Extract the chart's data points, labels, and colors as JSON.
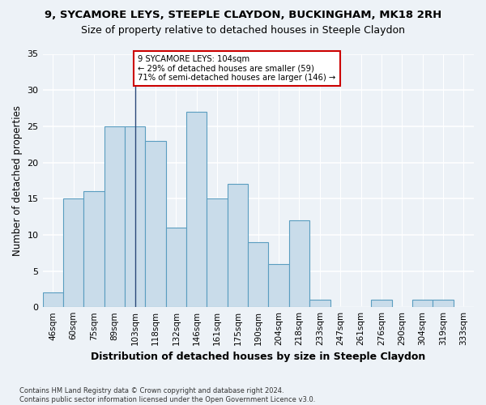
{
  "title1": "9, SYCAMORE LEYS, STEEPLE CLAYDON, BUCKINGHAM, MK18 2RH",
  "title2": "Size of property relative to detached houses in Steeple Claydon",
  "xlabel": "Distribution of detached houses by size in Steeple Claydon",
  "ylabel": "Number of detached properties",
  "footnote": "Contains HM Land Registry data © Crown copyright and database right 2024.\nContains public sector information licensed under the Open Government Licence v3.0.",
  "bar_labels": [
    "46sqm",
    "60sqm",
    "75sqm",
    "89sqm",
    "103sqm",
    "118sqm",
    "132sqm",
    "146sqm",
    "161sqm",
    "175sqm",
    "190sqm",
    "204sqm",
    "218sqm",
    "233sqm",
    "247sqm",
    "261sqm",
    "276sqm",
    "290sqm",
    "304sqm",
    "319sqm",
    "333sqm"
  ],
  "bar_values": [
    2,
    15,
    16,
    25,
    25,
    23,
    11,
    27,
    15,
    17,
    9,
    6,
    12,
    1,
    0,
    0,
    1,
    0,
    1,
    1,
    0
  ],
  "bar_color": "#c9dcea",
  "bar_edge_color": "#5a9dc0",
  "highlight_index": 4,
  "vline_color": "#2c4a7a",
  "annotation_line1": "9 SYCAMORE LEYS: 104sqm",
  "annotation_line2": "← 29% of detached houses are smaller (59)",
  "annotation_line3": "71% of semi-detached houses are larger (146) →",
  "annotation_box_color": "#ffffff",
  "annotation_border_color": "#cc0000",
  "ylim": [
    0,
    35
  ],
  "yticks": [
    0,
    5,
    10,
    15,
    20,
    25,
    30,
    35
  ],
  "bg_color": "#edf2f7",
  "grid_color": "#ffffff",
  "title1_fontsize": 9.5,
  "title2_fontsize": 9,
  "xlabel_fontsize": 9,
  "ylabel_fontsize": 8.5
}
